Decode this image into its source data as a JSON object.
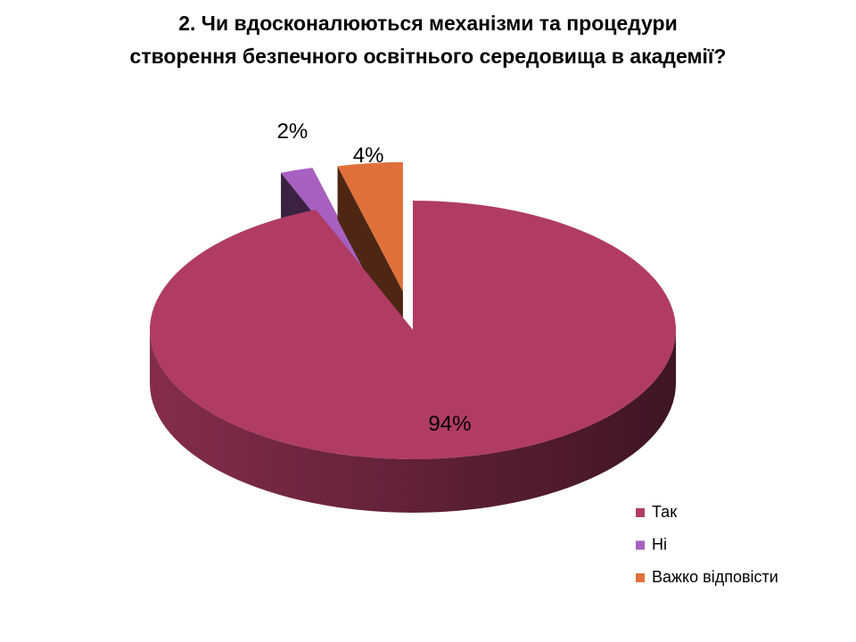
{
  "chart_data": {
    "type": "pie3d",
    "title": [
      "2. Чи вдосконалюються механізми та процедури",
      "створення безпечного освітнього середовища в академії?"
    ],
    "categories": [
      "Так",
      "Ні",
      "Важко відповісти"
    ],
    "values": [
      94,
      2,
      4
    ],
    "value_labels": [
      "94%",
      "2%",
      "4%"
    ],
    "colors": [
      "#b03c64",
      "#a860c0",
      "#e0703a"
    ],
    "legend": "right"
  }
}
